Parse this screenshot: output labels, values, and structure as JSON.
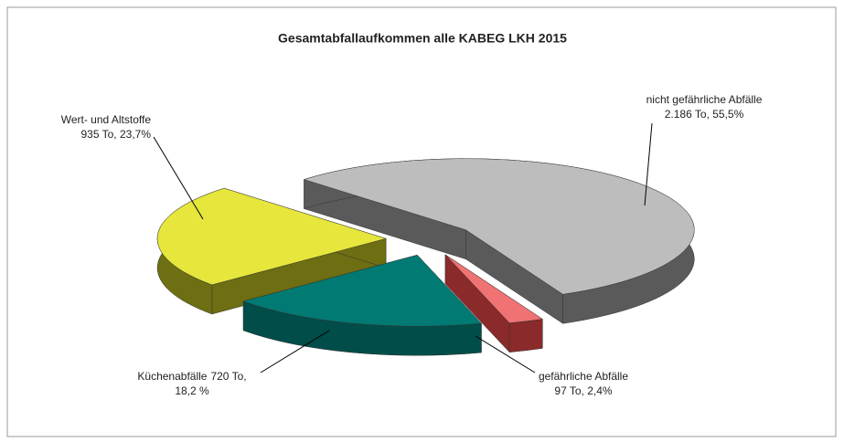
{
  "chart_data": {
    "type": "pie3d",
    "title": "Gesamtabfallaufkommen alle KABEG LKH 2015",
    "categories": [
      "nicht gefährliche Abfälle",
      "gefährliche Abfälle",
      "Küchenabfälle",
      "Wert- und Altstoffe"
    ],
    "values": [
      2186,
      97,
      720,
      935
    ],
    "value_labels": [
      [
        "2.186 To,  55,5%"
      ],
      [
        "97 To, 2,4%"
      ],
      [
        "720 To,",
        "18,2 %"
      ],
      [
        "935 To, 23,7%"
      ]
    ],
    "colors": [
      "#bdbdbd",
      "#f07272",
      "#007a73",
      "#e6e63c"
    ],
    "side_colors": [
      "#5a5a5a",
      "#8a2a2a",
      "#004d49",
      "#6e6e12"
    ]
  }
}
